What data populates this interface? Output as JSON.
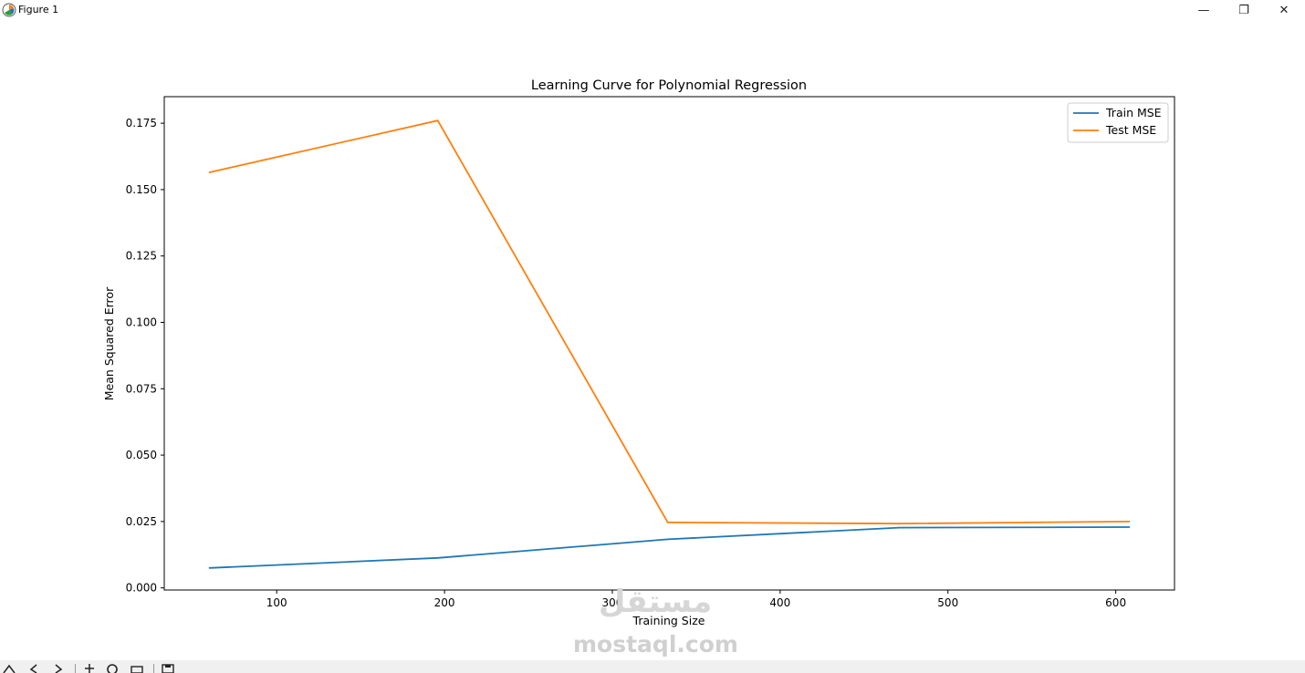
{
  "window": {
    "title": "Figure 1",
    "icon": "matplotlib-icon",
    "controls": {
      "minimize": "—",
      "restore": "❐",
      "close": "✕"
    }
  },
  "watermark": {
    "logo": "مستقل",
    "text": "mostaql.com"
  },
  "toolbar": {
    "icons": [
      "home-icon",
      "back-icon",
      "forward-icon",
      "pan-icon",
      "zoom-icon",
      "configure-icon",
      "save-icon"
    ]
  },
  "chart_data": {
    "type": "line",
    "title": "Learning Curve for Polynomial Regression",
    "xlabel": "Training Size",
    "ylabel": "Mean Squared Error",
    "x": [
      60,
      196,
      333,
      471,
      608
    ],
    "xlim": [
      33,
      635
    ],
    "ylim": [
      -0.0008,
      0.185
    ],
    "xticks": [
      100,
      200,
      300,
      400,
      500,
      600
    ],
    "yticks": [
      0.0,
      0.025,
      0.05,
      0.075,
      0.1,
      0.125,
      0.15,
      0.175
    ],
    "ytick_labels": [
      "0.000",
      "0.025",
      "0.050",
      "0.075",
      "0.100",
      "0.125",
      "0.150",
      "0.175"
    ],
    "grid": false,
    "legend_position": "top-right",
    "series": [
      {
        "name": "Train MSE",
        "color": "#1f77b4",
        "values": [
          0.0075,
          0.0113,
          0.0183,
          0.0227,
          0.0229
        ]
      },
      {
        "name": "Test MSE",
        "color": "#ff7f0e",
        "values": [
          0.1565,
          0.176,
          0.0247,
          0.0242,
          0.025
        ]
      }
    ]
  }
}
